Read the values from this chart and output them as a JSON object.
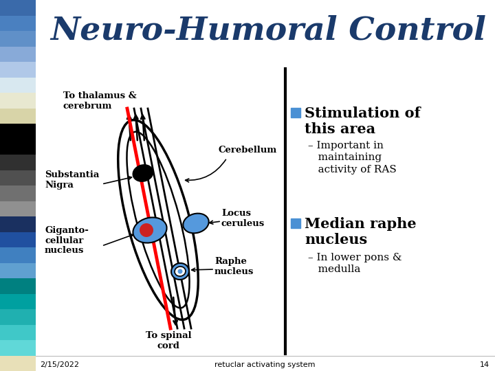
{
  "title": "Neuro-Humoral Control",
  "title_color": "#1a3a6b",
  "title_fontsize": 34,
  "bg_color": "#ffffff",
  "sidebar_colors": [
    "#3a6aaa",
    "#4a80c0",
    "#6090c8",
    "#88aad8",
    "#b0c8e8",
    "#d8e8f0",
    "#e8e8d0",
    "#d8d4a8",
    "#000000",
    "#000000",
    "#303030",
    "#505050",
    "#707070",
    "#909090",
    "#1a3060",
    "#2050a0",
    "#4080c0",
    "#60a0d0",
    "#008080",
    "#00a0a0",
    "#20b0b0",
    "#40c8c8",
    "#60d8d8",
    "#e8e0b8"
  ],
  "footer_date": "2/15/2022",
  "footer_center": "retuclar activating system",
  "footer_page": "14",
  "bullet_color": "#4a90d4",
  "label_thalamus": "To thalamus &\ncerebrum",
  "label_cerebellum": "Cerebellum",
  "label_substantia": "Substantia\nNigra",
  "label_giganto": "Giganto-\ncellular\nnucleus",
  "label_locus": "Locus\nceruleus",
  "label_raphe": "Raphe\nnucleus",
  "label_spinal": "To spinal\ncord"
}
